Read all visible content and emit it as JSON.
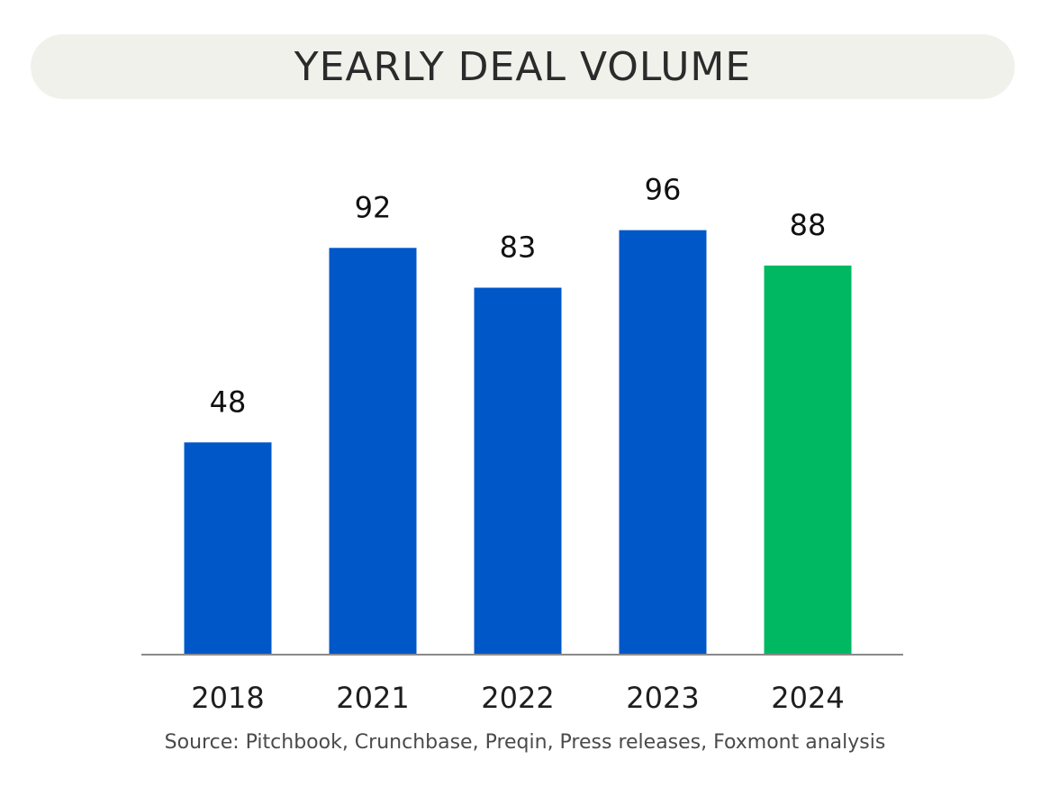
{
  "chart_data": {
    "type": "bar",
    "title": "YEARLY DEAL VOLUME",
    "categories": [
      "2018",
      "2021",
      "2022",
      "2023",
      "2024"
    ],
    "values": [
      48,
      92,
      83,
      96,
      88
    ],
    "data_labels": [
      "48",
      "92",
      "83",
      "96",
      "88"
    ],
    "colors": [
      "#0057c8",
      "#0057c8",
      "#0057c8",
      "#0057c8",
      "#00b862"
    ],
    "xlabel": "",
    "ylabel": "",
    "ylim": [
      0,
      100
    ],
    "grid": false,
    "source": "Source: Pitchbook, Crunchbase, Preqin, Press releases, Foxmont analysis"
  }
}
